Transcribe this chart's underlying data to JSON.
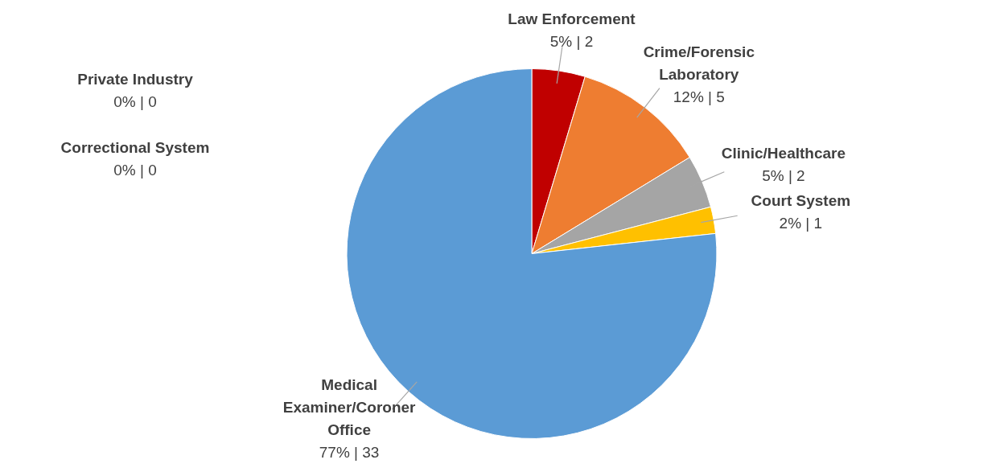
{
  "chart_data": {
    "type": "pie",
    "categories": [
      "Law Enforcement",
      "Crime/Forensic Laboratory",
      "Clinic/Healthcare",
      "Court System",
      "Medical Examiner/Coroner Office",
      "Private Industry",
      "Correctional System"
    ],
    "values": [
      2,
      5,
      2,
      1,
      33,
      0,
      0
    ],
    "value_labels": [
      "5% | 2",
      "12% | 5",
      "5% | 2",
      "2% | 1",
      "77% | 33",
      "0% | 0",
      "0% | 0"
    ],
    "colors": [
      "#c00000",
      "#ee7d31",
      "#a5a5a5",
      "#ffc000",
      "#5b9bd5",
      "#264478",
      "#9e480e"
    ],
    "legend": false
  }
}
